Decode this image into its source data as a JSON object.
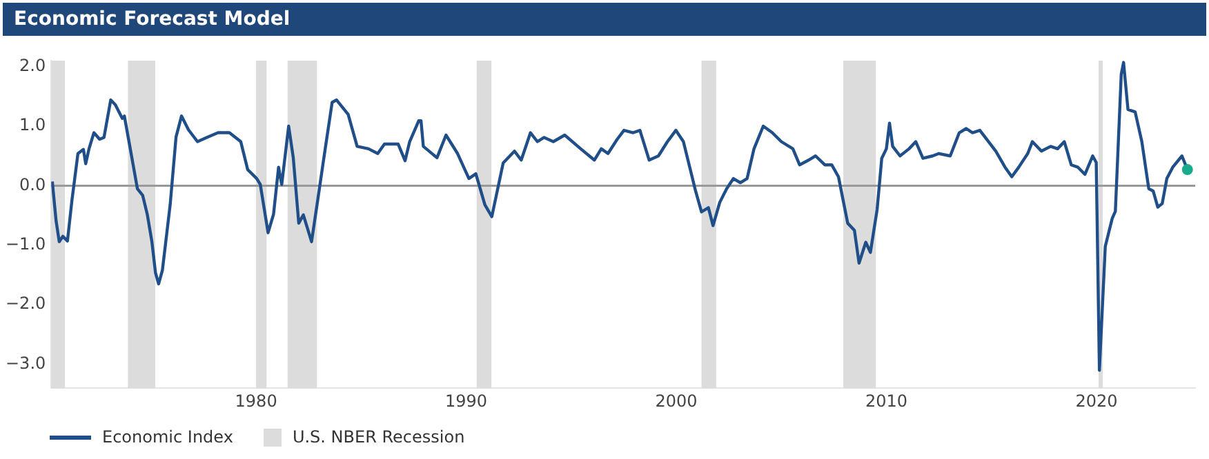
{
  "chart_data": {
    "type": "line",
    "title": "Economic Forecast Model",
    "xlim": [
      1970.25,
      2024.7
    ],
    "xticks": [
      1980,
      1990,
      2000,
      2010,
      2020
    ],
    "ylim": [
      -3.4,
      2.1
    ],
    "yticks": [
      {
        "value": 2,
        "label": "2.0"
      },
      {
        "value": 1,
        "label": "1.0"
      },
      {
        "value": 0,
        "label": "0.0"
      },
      {
        "value": -1,
        "label": "−1.0"
      },
      {
        "value": -2,
        "label": "−2.0"
      },
      {
        "value": -3,
        "label": "−3.0"
      }
    ],
    "grid": false,
    "legend": "bottom left",
    "marker": "none",
    "line_style": "solid",
    "series": [
      {
        "name": "Economic Index",
        "color": "#1f4e89",
        "x": [
          1970.3,
          1970.48,
          1970.63,
          1970.8,
          1971.02,
          1971.24,
          1971.52,
          1971.78,
          1971.89,
          1972.04,
          1972.28,
          1972.55,
          1972.76,
          1973.08,
          1973.3,
          1973.63,
          1973.73,
          1973.95,
          1974.35,
          1974.6,
          1974.82,
          1975.04,
          1975.21,
          1975.36,
          1975.54,
          1975.91,
          1976.19,
          1976.45,
          1976.78,
          1977.21,
          1977.65,
          1978.19,
          1978.73,
          1979.27,
          1979.6,
          1980.03,
          1980.2,
          1980.57,
          1980.83,
          1981.07,
          1981.22,
          1981.55,
          1981.77,
          1982.03,
          1982.25,
          1982.64,
          1982.9,
          1983.29,
          1983.62,
          1983.83,
          1984.38,
          1984.81,
          1985.35,
          1985.79,
          1986.11,
          1986.76,
          1987.09,
          1987.31,
          1987.74,
          1987.85,
          1987.96,
          1988.61,
          1989.04,
          1989.59,
          1990.13,
          1990.46,
          1990.89,
          1991.22,
          1991.76,
          1992.3,
          1992.62,
          1993.06,
          1993.39,
          1993.71,
          1994.15,
          1994.69,
          1995.45,
          1996.1,
          1996.43,
          1996.75,
          1997.19,
          1997.51,
          1997.95,
          1998.27,
          1998.71,
          1999.15,
          1999.58,
          1999.98,
          2000.34,
          2000.92,
          2001.2,
          2001.53,
          2001.75,
          2002.07,
          2002.4,
          2002.72,
          2003.05,
          2003.37,
          2003.7,
          2004.14,
          2004.57,
          2005.0,
          2005.55,
          2005.87,
          2006.3,
          2006.63,
          2007.07,
          2007.4,
          2007.72,
          2008.16,
          2008.48,
          2008.7,
          2009.02,
          2009.24,
          2009.56,
          2009.78,
          2010.0,
          2010.15,
          2010.3,
          2010.65,
          2011.08,
          2011.4,
          2011.74,
          2012.2,
          2012.5,
          2013.04,
          2013.47,
          2013.8,
          2014.1,
          2014.45,
          2015.21,
          2015.65,
          2015.97,
          2016.3,
          2016.73,
          2016.95,
          2017.38,
          2017.82,
          2018.15,
          2018.47,
          2018.8,
          2019.12,
          2019.45,
          2019.82,
          2019.99,
          2020.14,
          2020.42,
          2020.75,
          2020.9,
          2021.18,
          2021.29,
          2021.5,
          2021.84,
          2022.16,
          2022.49,
          2022.7,
          2022.92,
          2023.13,
          2023.35,
          2023.63,
          2024.07,
          2024.33
        ],
        "values": [
          0.07,
          -0.59,
          -0.94,
          -0.85,
          -0.93,
          -0.23,
          0.54,
          0.61,
          0.37,
          0.61,
          0.89,
          0.78,
          0.81,
          1.44,
          1.36,
          1.13,
          1.17,
          0.74,
          -0.05,
          -0.16,
          -0.48,
          -0.94,
          -1.46,
          -1.65,
          -1.42,
          -0.32,
          0.82,
          1.17,
          0.94,
          0.74,
          0.81,
          0.89,
          0.89,
          0.74,
          0.27,
          0.12,
          0.02,
          -0.79,
          -0.48,
          0.31,
          0.02,
          1.0,
          0.47,
          -0.63,
          -0.49,
          -0.94,
          -0.32,
          0.62,
          1.4,
          1.44,
          1.2,
          0.66,
          0.62,
          0.54,
          0.7,
          0.7,
          0.42,
          0.74,
          1.09,
          1.09,
          0.66,
          0.47,
          0.85,
          0.54,
          0.12,
          0.2,
          -0.32,
          -0.52,
          0.38,
          0.58,
          0.43,
          0.89,
          0.74,
          0.81,
          0.74,
          0.85,
          0.62,
          0.43,
          0.62,
          0.54,
          0.78,
          0.93,
          0.89,
          0.93,
          0.43,
          0.5,
          0.74,
          0.93,
          0.74,
          -0.09,
          -0.44,
          -0.37,
          -0.67,
          -0.28,
          -0.05,
          0.12,
          0.05,
          0.12,
          0.62,
          1.0,
          0.89,
          0.74,
          0.62,
          0.35,
          0.43,
          0.5,
          0.35,
          0.35,
          0.15,
          -0.63,
          -0.75,
          -1.3,
          -0.95,
          -1.12,
          -0.4,
          0.46,
          0.62,
          1.05,
          0.66,
          0.5,
          0.62,
          0.74,
          0.46,
          0.5,
          0.54,
          0.5,
          0.89,
          0.96,
          0.89,
          0.93,
          0.58,
          0.31,
          0.15,
          0.31,
          0.54,
          0.74,
          0.58,
          0.66,
          0.62,
          0.74,
          0.35,
          0.31,
          0.19,
          0.5,
          0.39,
          -3.1,
          -1.02,
          -0.55,
          -0.43,
          1.87,
          2.07,
          1.28,
          1.24,
          0.74,
          -0.05,
          -0.09,
          -0.36,
          -0.3,
          0.12,
          0.31,
          0.5,
          0.27
        ]
      },
      {
        "type": "scatter",
        "color": "#1aaa8c",
        "marker": "circle",
        "x": [
          2024.33
        ],
        "values": [
          0.27
        ]
      }
    ],
    "ref_lines": [
      {
        "axis": "y",
        "value": 0,
        "color": "#999999"
      }
    ],
    "bands": [
      {
        "axis": "x",
        "from": 1970.25,
        "to": 1970.9,
        "label": "U.S. NBER Recession",
        "color": "#dcdcdc"
      },
      {
        "axis": "x",
        "from": 1973.9,
        "to": 1975.2,
        "color": "#dcdcdc"
      },
      {
        "axis": "x",
        "from": 1980.0,
        "to": 1980.5,
        "color": "#dcdcdc"
      },
      {
        "axis": "x",
        "from": 1981.5,
        "to": 1982.9,
        "color": "#dcdcdc"
      },
      {
        "axis": "x",
        "from": 1990.5,
        "to": 1991.2,
        "color": "#dcdcdc"
      },
      {
        "axis": "x",
        "from": 2001.2,
        "to": 2001.9,
        "color": "#dcdcdc"
      },
      {
        "axis": "x",
        "from": 2007.95,
        "to": 2009.5,
        "color": "#dcdcdc"
      },
      {
        "axis": "x",
        "from": 2020.1,
        "to": 2020.3,
        "color": "#dcdcdc"
      }
    ]
  }
}
